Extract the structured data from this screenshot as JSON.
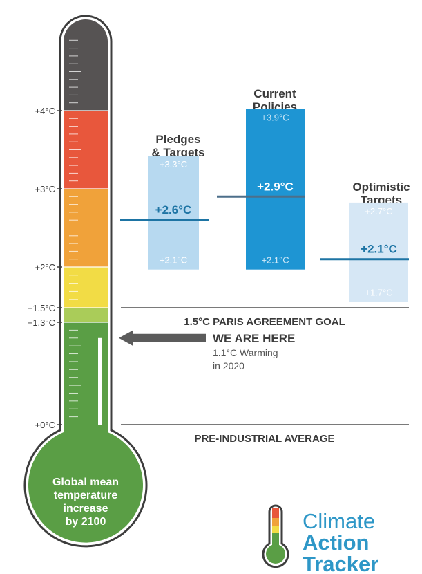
{
  "chart_data": {
    "type": "bar",
    "thermometer": {
      "ticks": [
        "+4°C",
        "+3°C",
        "+2°C",
        "+1.5°C",
        "+1.3°C",
        "+0°C"
      ],
      "bulb_text": [
        "Global mean",
        "temperature",
        "increase",
        "by 2100"
      ],
      "band_colors": [
        "#565353",
        "#e8573c",
        "#f0a23a",
        "#f2dc45",
        "#aacc59",
        "#5a9e45"
      ]
    },
    "scenarios": [
      {
        "title": [
          "Pledges",
          "& Targets"
        ],
        "high": 3.3,
        "central": 2.6,
        "low": 2.1,
        "high_label": "+3.3°C",
        "central_label": "+2.6°C",
        "low_label": "+2.1°C",
        "bar_color": "#b7d9f0",
        "line_color": "#1d74a4",
        "text_color": "#ffffff",
        "central_text_color": "#1d74a4"
      },
      {
        "title": [
          "Current",
          "Policies"
        ],
        "high": 3.9,
        "central": 2.9,
        "low": 2.1,
        "high_label": "+3.9°C",
        "central_label": "+2.9°C",
        "low_label": "+2.1°C",
        "bar_color": "#1e95d3",
        "line_color": "#4c6f8a",
        "text_color": "#cfe8f7",
        "central_text_color": "#ffffff"
      },
      {
        "title": [
          "Optimistic",
          "Targets"
        ],
        "high": 2.7,
        "central": 2.1,
        "low": 1.7,
        "high_label": "+2.7°C",
        "central_label": "+2.1°C",
        "low_label": "+1.7°C",
        "bar_color": "#d6e7f5",
        "line_color": "#1d74a4",
        "text_color": "#ffffff",
        "central_text_color": "#1d74a4"
      }
    ],
    "reference_lines": [
      {
        "value": 1.5,
        "label": "1.5°C PARIS AGREEMENT GOAL"
      },
      {
        "value": 0,
        "label": "PRE-INDUSTRIAL AVERAGE"
      }
    ],
    "current": {
      "value": 1.1,
      "title": "WE ARE HERE",
      "subtitle": [
        "1.1°C Warming",
        "in 2020"
      ]
    }
  },
  "logo": {
    "words": [
      "Climate",
      "Action",
      "Tracker"
    ]
  },
  "colors": {
    "text_dark": "#3a3a3a",
    "rule": "#7a7a7a",
    "logo_blue": "#2e97c7"
  }
}
